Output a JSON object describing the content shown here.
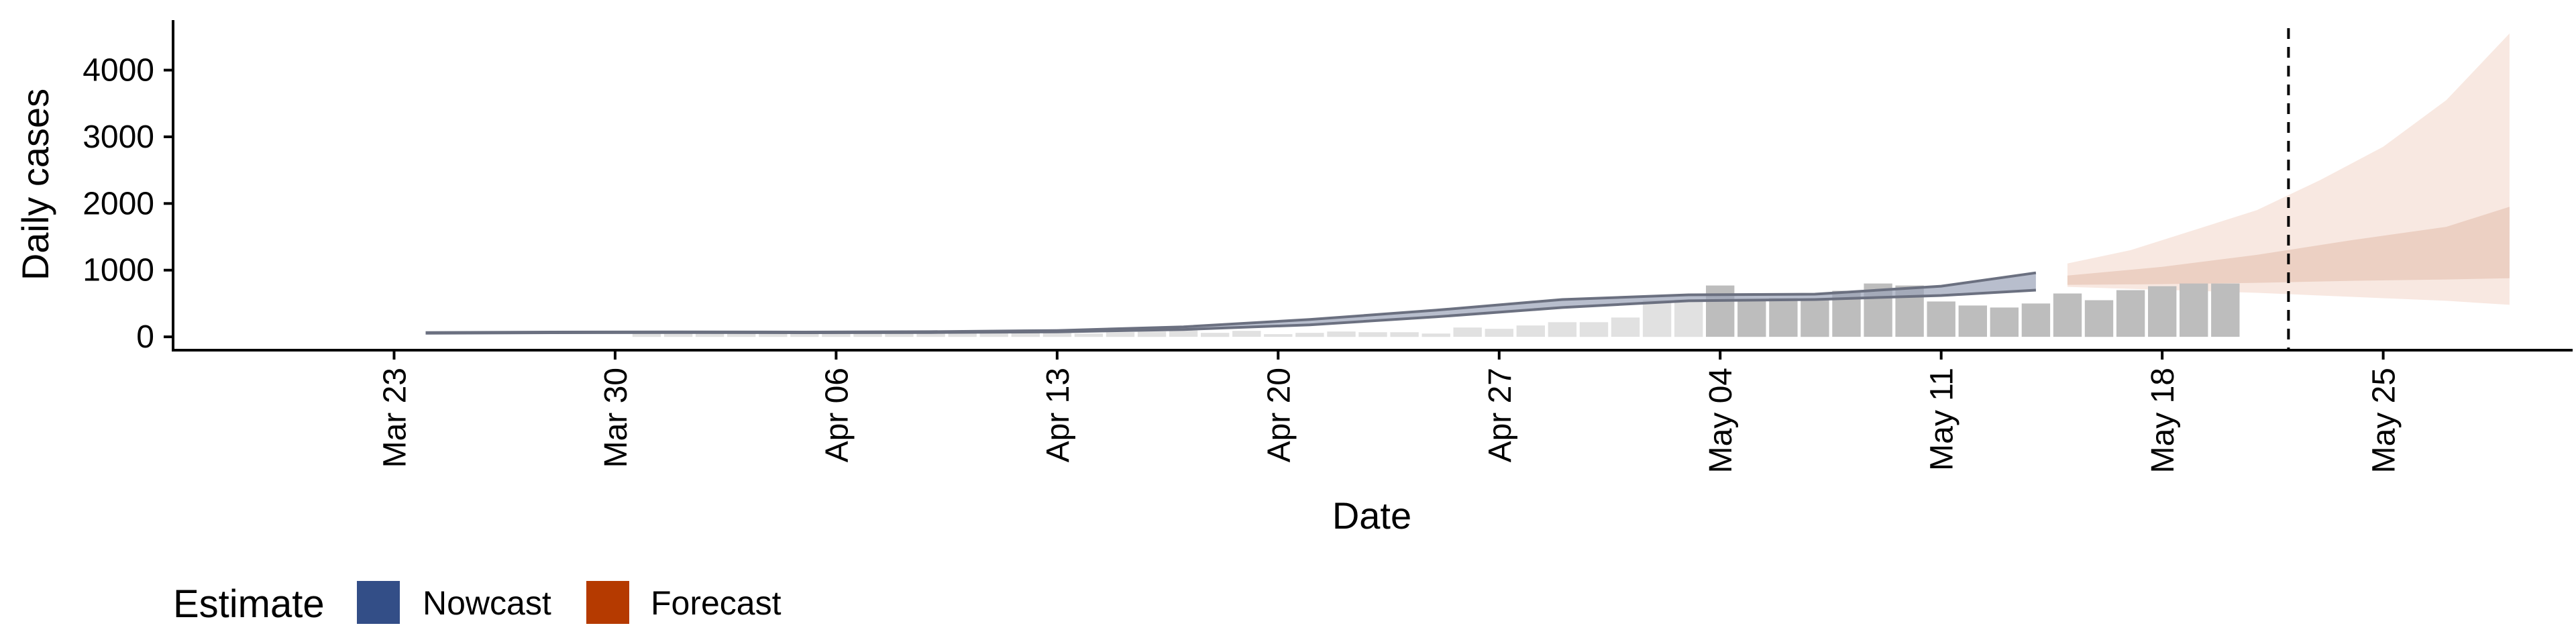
{
  "chart_data": {
    "type": "bar",
    "xlabel": "Date",
    "ylabel": "Daily cases",
    "x_ticks": [
      "Mar 23",
      "Mar 30",
      "Apr 06",
      "Apr 13",
      "Apr 20",
      "Apr 27",
      "May 04",
      "May 11",
      "May 18",
      "May 25"
    ],
    "y_ticks": [
      "0",
      "1000",
      "2000",
      "3000",
      "4000"
    ],
    "ylim": [
      -200,
      4750
    ],
    "xlim": [
      "2020-03-16",
      "2020-05-31"
    ],
    "grid": false,
    "legend": {
      "title": "Estimate",
      "placement": "bottom-left",
      "items": [
        {
          "label": "Nowcast",
          "color": "#334E87"
        },
        {
          "label": "Forecast",
          "color": "#B53A00"
        }
      ]
    },
    "reference_line": {
      "date": "2020-05-22",
      "style": "dashed"
    },
    "reported_cases": {
      "start_date": "2020-03-31",
      "values": [
        60,
        70,
        80,
        70,
        70,
        60,
        60,
        70,
        60,
        70,
        70,
        80,
        60,
        70,
        50,
        70,
        80,
        100,
        60,
        90,
        40,
        60,
        80,
        70,
        70,
        50,
        140,
        120,
        170,
        220,
        220,
        290,
        550,
        560,
        770,
        570,
        580,
        570,
        690,
        800,
        770,
        530,
        470,
        440,
        500,
        650,
        550,
        700,
        760,
        800,
        800
      ],
      "confidence": "faded-before-May-04"
    },
    "nowcast_band": {
      "dates": [
        "2020-03-24",
        "2020-03-28",
        "2020-04-01",
        "2020-04-05",
        "2020-04-09",
        "2020-04-13",
        "2020-04-17",
        "2020-04-21",
        "2020-04-25",
        "2020-04-29",
        "2020-05-03",
        "2020-05-07",
        "2020-05-11",
        "2020-05-14"
      ],
      "lower": [
        55,
        62,
        65,
        62,
        65,
        75,
        110,
        180,
        300,
        440,
        540,
        560,
        620,
        700
      ],
      "upper": [
        65,
        72,
        75,
        72,
        78,
        95,
        150,
        260,
        400,
        560,
        630,
        640,
        760,
        960
      ]
    },
    "forecast_inner": {
      "dates": [
        "2020-05-15",
        "2020-05-18",
        "2020-05-21",
        "2020-05-24",
        "2020-05-27",
        "2020-05-29"
      ],
      "lower": [
        780,
        790,
        810,
        840,
        860,
        880
      ],
      "upper": [
        920,
        1050,
        1230,
        1450,
        1650,
        1950
      ]
    },
    "forecast_outer": {
      "dates": [
        "2020-05-15",
        "2020-05-17",
        "2020-05-19",
        "2020-05-21",
        "2020-05-23",
        "2020-05-25",
        "2020-05-27",
        "2020-05-29"
      ],
      "lower": [
        750,
        720,
        690,
        660,
        620,
        580,
        540,
        480
      ],
      "upper": [
        1100,
        1300,
        1600,
        1900,
        2350,
        2850,
        3550,
        4550
      ]
    }
  },
  "colors": {
    "bars": "#bdbdbd",
    "nowcast_fill": "#9aa3b8",
    "nowcast_line": "#6b7080",
    "forecast_inner": "#ecd0c3",
    "forecast_outer": "#f8e8e1",
    "axis": "#000000"
  }
}
